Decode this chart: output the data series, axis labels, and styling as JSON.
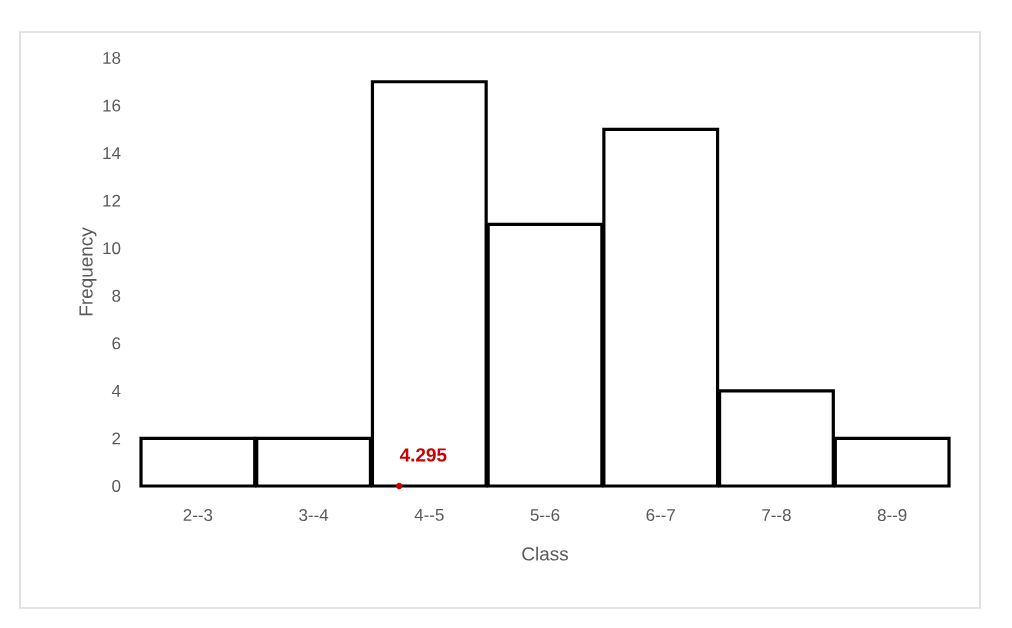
{
  "chart_data": {
    "type": "bar",
    "xlabel": "Class",
    "ylabel": "Frequency",
    "categories": [
      "2--3",
      "3--4",
      "4--5",
      "5--6",
      "6--7",
      "7--8",
      "8--9"
    ],
    "values": [
      2,
      2,
      17,
      11,
      15,
      4,
      2
    ],
    "color": "#ffffff",
    "ylim": [
      0,
      18
    ],
    "yticks": [
      0,
      2,
      4,
      6,
      8,
      10,
      12,
      14,
      16,
      18
    ],
    "annotations": [
      "4.295"
    ]
  }
}
